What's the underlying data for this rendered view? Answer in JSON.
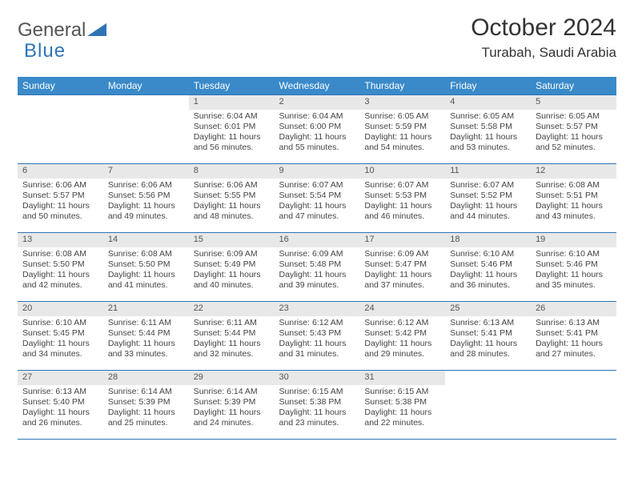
{
  "brand": {
    "part1": "General",
    "part2": "Blue"
  },
  "title": "October 2024",
  "location": "Turabah, Saudi Arabia",
  "colors": {
    "header_bg": "#3a8ac9",
    "header_fg": "#ffffff",
    "rule": "#2e75b6",
    "daynum_bg": "#e8e8e8",
    "text": "#333333",
    "brand_blue": "#2e75b6"
  },
  "weekdays": [
    "Sunday",
    "Monday",
    "Tuesday",
    "Wednesday",
    "Thursday",
    "Friday",
    "Saturday"
  ],
  "weeks": [
    [
      null,
      null,
      {
        "n": "1",
        "sr": "6:04 AM",
        "ss": "6:01 PM",
        "dl": "11 hours and 56 minutes."
      },
      {
        "n": "2",
        "sr": "6:04 AM",
        "ss": "6:00 PM",
        "dl": "11 hours and 55 minutes."
      },
      {
        "n": "3",
        "sr": "6:05 AM",
        "ss": "5:59 PM",
        "dl": "11 hours and 54 minutes."
      },
      {
        "n": "4",
        "sr": "6:05 AM",
        "ss": "5:58 PM",
        "dl": "11 hours and 53 minutes."
      },
      {
        "n": "5",
        "sr": "6:05 AM",
        "ss": "5:57 PM",
        "dl": "11 hours and 52 minutes."
      }
    ],
    [
      {
        "n": "6",
        "sr": "6:06 AM",
        "ss": "5:57 PM",
        "dl": "11 hours and 50 minutes."
      },
      {
        "n": "7",
        "sr": "6:06 AM",
        "ss": "5:56 PM",
        "dl": "11 hours and 49 minutes."
      },
      {
        "n": "8",
        "sr": "6:06 AM",
        "ss": "5:55 PM",
        "dl": "11 hours and 48 minutes."
      },
      {
        "n": "9",
        "sr": "6:07 AM",
        "ss": "5:54 PM",
        "dl": "11 hours and 47 minutes."
      },
      {
        "n": "10",
        "sr": "6:07 AM",
        "ss": "5:53 PM",
        "dl": "11 hours and 46 minutes."
      },
      {
        "n": "11",
        "sr": "6:07 AM",
        "ss": "5:52 PM",
        "dl": "11 hours and 44 minutes."
      },
      {
        "n": "12",
        "sr": "6:08 AM",
        "ss": "5:51 PM",
        "dl": "11 hours and 43 minutes."
      }
    ],
    [
      {
        "n": "13",
        "sr": "6:08 AM",
        "ss": "5:50 PM",
        "dl": "11 hours and 42 minutes."
      },
      {
        "n": "14",
        "sr": "6:08 AM",
        "ss": "5:50 PM",
        "dl": "11 hours and 41 minutes."
      },
      {
        "n": "15",
        "sr": "6:09 AM",
        "ss": "5:49 PM",
        "dl": "11 hours and 40 minutes."
      },
      {
        "n": "16",
        "sr": "6:09 AM",
        "ss": "5:48 PM",
        "dl": "11 hours and 39 minutes."
      },
      {
        "n": "17",
        "sr": "6:09 AM",
        "ss": "5:47 PM",
        "dl": "11 hours and 37 minutes."
      },
      {
        "n": "18",
        "sr": "6:10 AM",
        "ss": "5:46 PM",
        "dl": "11 hours and 36 minutes."
      },
      {
        "n": "19",
        "sr": "6:10 AM",
        "ss": "5:46 PM",
        "dl": "11 hours and 35 minutes."
      }
    ],
    [
      {
        "n": "20",
        "sr": "6:10 AM",
        "ss": "5:45 PM",
        "dl": "11 hours and 34 minutes."
      },
      {
        "n": "21",
        "sr": "6:11 AM",
        "ss": "5:44 PM",
        "dl": "11 hours and 33 minutes."
      },
      {
        "n": "22",
        "sr": "6:11 AM",
        "ss": "5:44 PM",
        "dl": "11 hours and 32 minutes."
      },
      {
        "n": "23",
        "sr": "6:12 AM",
        "ss": "5:43 PM",
        "dl": "11 hours and 31 minutes."
      },
      {
        "n": "24",
        "sr": "6:12 AM",
        "ss": "5:42 PM",
        "dl": "11 hours and 29 minutes."
      },
      {
        "n": "25",
        "sr": "6:13 AM",
        "ss": "5:41 PM",
        "dl": "11 hours and 28 minutes."
      },
      {
        "n": "26",
        "sr": "6:13 AM",
        "ss": "5:41 PM",
        "dl": "11 hours and 27 minutes."
      }
    ],
    [
      {
        "n": "27",
        "sr": "6:13 AM",
        "ss": "5:40 PM",
        "dl": "11 hours and 26 minutes."
      },
      {
        "n": "28",
        "sr": "6:14 AM",
        "ss": "5:39 PM",
        "dl": "11 hours and 25 minutes."
      },
      {
        "n": "29",
        "sr": "6:14 AM",
        "ss": "5:39 PM",
        "dl": "11 hours and 24 minutes."
      },
      {
        "n": "30",
        "sr": "6:15 AM",
        "ss": "5:38 PM",
        "dl": "11 hours and 23 minutes."
      },
      {
        "n": "31",
        "sr": "6:15 AM",
        "ss": "5:38 PM",
        "dl": "11 hours and 22 minutes."
      },
      null,
      null
    ]
  ],
  "labels": {
    "sunrise": "Sunrise:",
    "sunset": "Sunset:",
    "daylight": "Daylight:"
  }
}
